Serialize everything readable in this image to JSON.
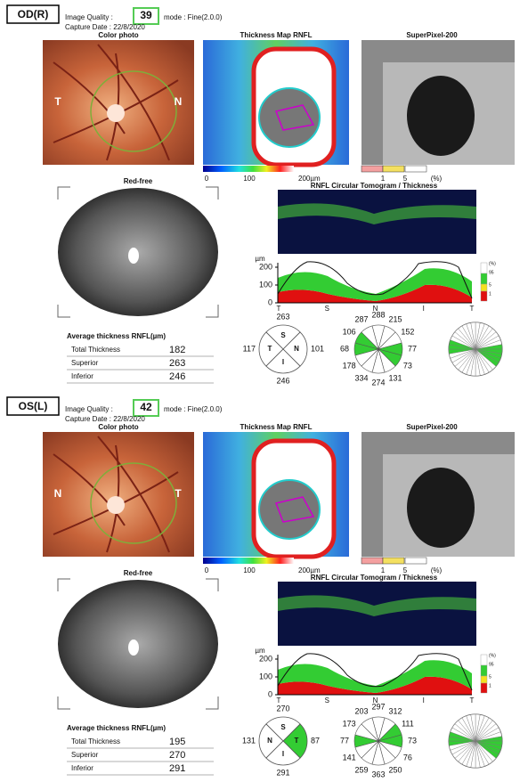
{
  "sections": [
    {
      "eye": "OD(R)",
      "quality_label": "Image Quality :",
      "quality": 39,
      "mode": "mode : Fine(2.0.0)",
      "capture": "Capture Date : 22/8/2020",
      "color_photo": {
        "title": "Color photo",
        "left": "T",
        "right": "N"
      },
      "thickness_map": {
        "title": "Thickness Map RNFL",
        "scale": [
          "0",
          "100",
          "200µm"
        ]
      },
      "superpixel": {
        "title": "SuperPixel-200",
        "scale": [
          "1",
          "5",
          "(%)"
        ]
      },
      "red_free": "Red-free",
      "tomogram": {
        "title": "RNFL Circular Tomogram / Thickness",
        "unit": "µm",
        "yticks": [
          200,
          100,
          0
        ],
        "xlabels": [
          "T",
          "S",
          "N",
          "I",
          "T"
        ],
        "legend": [
          "(%)",
          "95",
          "5",
          "1"
        ]
      },
      "average": {
        "title": "Average thickness RNFL(µm)",
        "rows": [
          [
            "Total Thickness",
            182
          ],
          [
            "Superior",
            263
          ],
          [
            "Inferior",
            246
          ]
        ]
      },
      "quadrant": {
        "labels": [
          "S",
          "T",
          "N",
          "I"
        ],
        "values": [
          263,
          117,
          101,
          246
        ],
        "colors": [
          "#ffffff",
          "#ffffff",
          "#ffffff",
          "#ffffff"
        ]
      },
      "clock": {
        "values": [
          288,
          215,
          152,
          77,
          73,
          131,
          274,
          334,
          178,
          68,
          106,
          287
        ],
        "colors": [
          "#ffffff",
          "#ffffff",
          "#ffffff",
          "#33cc33",
          "#33cc33",
          "#ffffff",
          "#ffffff",
          "#ffffff",
          "#ffffff",
          "#33cc33",
          "#33cc33",
          "#ffffff"
        ]
      }
    },
    {
      "eye": "OS(L)",
      "quality_label": "Image Quality :",
      "quality": 42,
      "mode": "mode : Fine(2.0.0)",
      "capture": "Capture Date : 22/8/2020",
      "color_photo": {
        "title": "Color photo",
        "left": "N",
        "right": "T"
      },
      "thickness_map": {
        "title": "Thickness Map RNFL",
        "scale": [
          "0",
          "100",
          "200µm"
        ]
      },
      "superpixel": {
        "title": "SuperPixel-200",
        "scale": [
          "1",
          "5",
          "(%)"
        ]
      },
      "red_free": "Red-free",
      "tomogram": {
        "title": "RNFL Circular Tomogram / Thickness",
        "unit": "µm",
        "yticks": [
          200,
          100,
          0
        ],
        "xlabels": [
          "T",
          "S",
          "N",
          "I",
          "T"
        ],
        "legend": [
          "(%)",
          "95",
          "5",
          "1"
        ]
      },
      "average": {
        "title": "Average thickness RNFL(µm)",
        "rows": [
          [
            "Total Thickness",
            195
          ],
          [
            "Superior",
            270
          ],
          [
            "Inferior",
            291
          ]
        ]
      },
      "quadrant": {
        "labels": [
          "S",
          "N",
          "T",
          "I"
        ],
        "values": [
          270,
          131,
          87,
          291
        ],
        "colors": [
          "#ffffff",
          "#ffffff",
          "#33cc33",
          "#ffffff"
        ]
      },
      "clock": {
        "values": [
          297,
          312,
          111,
          73,
          76,
          250,
          363,
          259,
          141,
          77,
          173,
          203
        ],
        "colors": [
          "#ffffff",
          "#ffffff",
          "#33cc33",
          "#33cc33",
          "#ffffff",
          "#ffffff",
          "#ffffff",
          "#ffffff",
          "#ffffff",
          "#33cc33",
          "#ffffff",
          "#ffffff"
        ]
      }
    }
  ]
}
